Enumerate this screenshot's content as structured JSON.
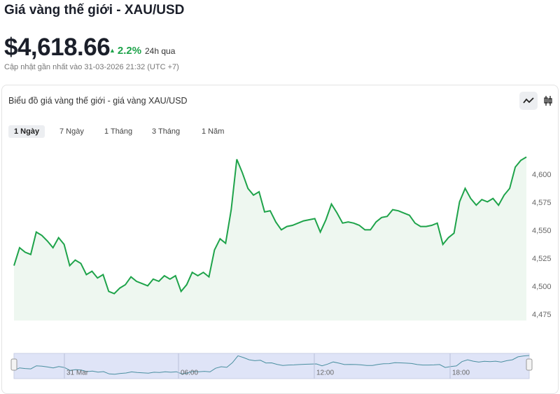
{
  "header": {
    "title": "Giá vàng thế giới - XAU/USD",
    "price": "$4,618.66",
    "change": "2.2%",
    "change_period": "24h qua",
    "updated": "Cập nhật gần nhất vào 31-03-2026 21:32 (UTC +7)"
  },
  "card": {
    "title": "Biểu đồ giá vàng thế giới - giá vàng XAU/USD",
    "tabs": [
      "1 Ngày",
      "7 Ngày",
      "1 Tháng",
      "3 Tháng",
      "1 Năm"
    ],
    "active_tab": 0
  },
  "chart_data": {
    "type": "line",
    "color": "#1ea34a",
    "area": true,
    "values": [
      4519,
      4535,
      4531,
      4529,
      4549,
      4546,
      4541,
      4535,
      4544,
      4538,
      4519,
      4524,
      4521,
      4511,
      4514,
      4508,
      4511,
      4496,
      4494,
      4499,
      4502,
      4509,
      4505,
      4503,
      4501,
      4507,
      4505,
      4510,
      4507,
      4510,
      4496,
      4502,
      4513,
      4510,
      4513,
      4509,
      4533,
      4543,
      4539,
      4569,
      4614,
      4602,
      4588,
      4582,
      4585,
      4567,
      4568,
      4558,
      4551,
      4554,
      4555,
      4557,
      4559,
      4560,
      4561,
      4549,
      4560,
      4574,
      4566,
      4557,
      4558,
      4557,
      4555,
      4551,
      4551,
      4558,
      4562,
      4563,
      4569,
      4568,
      4566,
      4564,
      4557,
      4554,
      4554,
      4555,
      4557,
      4538,
      4544,
      4548,
      4576,
      4588,
      4579,
      4573,
      4578,
      4576,
      4579,
      4573,
      4582,
      4588,
      4607,
      4613,
      4616
    ],
    "ylim": [
      4470,
      4625
    ],
    "yticks": [
      {
        "value": 4475,
        "label": "4,475"
      },
      {
        "value": 4500,
        "label": "4,500"
      },
      {
        "value": 4525,
        "label": "4,525"
      },
      {
        "value": 4550,
        "label": "4,550"
      },
      {
        "value": 4575,
        "label": "4,575"
      },
      {
        "value": 4600,
        "label": "4,600"
      }
    ],
    "navigator_labels": [
      "31 Mar",
      "06:00",
      "12:00",
      "18:00"
    ]
  }
}
